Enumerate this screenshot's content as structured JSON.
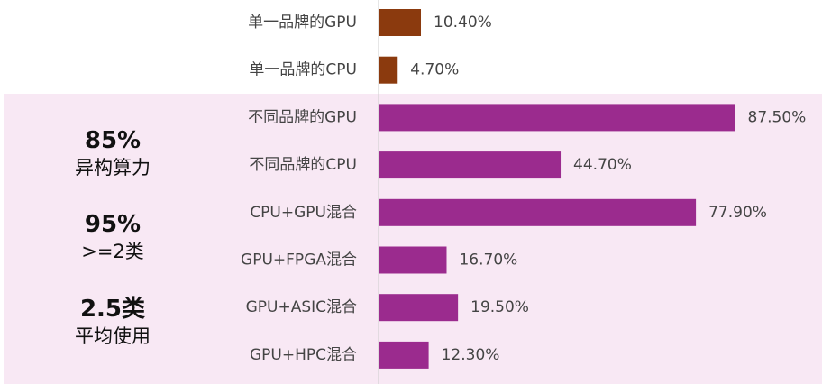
{
  "chart_data": {
    "type": "bar",
    "orientation": "horizontal",
    "categories": [
      "单一品牌的GPU",
      "单一品牌的CPU",
      "不同品牌的GPU",
      "不同品牌的CPU",
      "CPU+GPU混合",
      "GPU+FPGA混合",
      "GPU+ASIC混合",
      "GPU+HPC混合"
    ],
    "values": [
      10.4,
      4.7,
      87.5,
      44.7,
      77.9,
      16.7,
      19.5,
      12.3
    ],
    "value_labels": [
      "10.40%",
      "4.70%",
      "87.50%",
      "44.70%",
      "77.90%",
      "16.70%",
      "19.50%",
      "12.30%"
    ],
    "bar_colors": [
      "#8b3a0e",
      "#8b3a0e",
      "#9b2b8e",
      "#9b2b8e",
      "#9b2b8e",
      "#9b2b8e",
      "#9b2b8e",
      "#9b2b8e"
    ],
    "xlim": [
      0,
      100
    ],
    "title": "",
    "xlabel": "",
    "ylabel": "",
    "grid": false
  },
  "highlight_color": "#f8e8f4",
  "stats": [
    {
      "big": "85%",
      "small": "异构算力"
    },
    {
      "big": "95%",
      "small": ">=2类"
    },
    {
      "big": "2.5类",
      "small": "平均使用"
    }
  ]
}
